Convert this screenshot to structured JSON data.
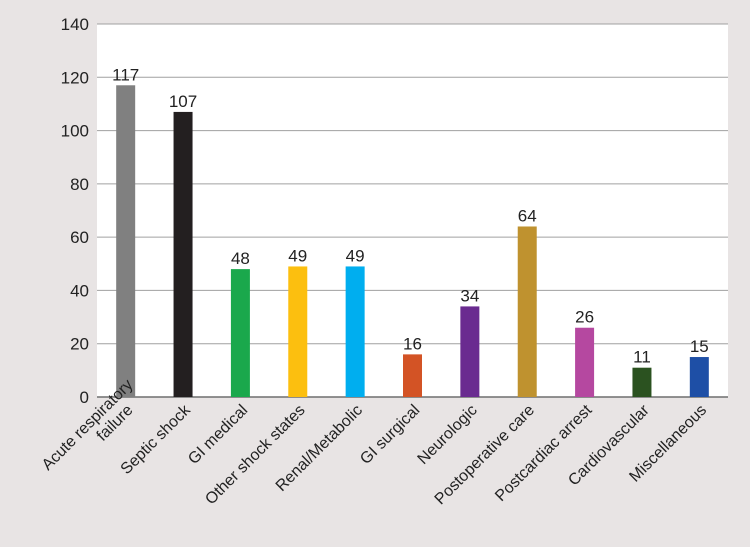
{
  "chart_data": {
    "type": "bar",
    "title": "",
    "xlabel": "",
    "ylabel": "",
    "ylim": [
      0,
      140
    ],
    "yticks": [
      0,
      20,
      40,
      60,
      80,
      100,
      120,
      140
    ],
    "grid": true,
    "legend": "none",
    "plot_background": "#ffffff",
    "page_background": "#e8e4e4",
    "gridline_color": "#a0a0a0",
    "bars": [
      {
        "category": "Acute respiratory failure",
        "label_lines": [
          "Acute respiratory",
          "failure"
        ],
        "value": 117,
        "color": "#808080"
      },
      {
        "category": "Septic shock",
        "label_lines": [
          "Septic shock"
        ],
        "value": 107,
        "color": "#231f20"
      },
      {
        "category": "GI medical",
        "label_lines": [
          "GI medical"
        ],
        "value": 48,
        "color": "#1aa84c"
      },
      {
        "category": "Other shock states",
        "label_lines": [
          "Other shock states"
        ],
        "value": 49,
        "color": "#fcbf0f"
      },
      {
        "category": "Renal/Metabolic",
        "label_lines": [
          "Renal/Metabolic"
        ],
        "value": 49,
        "color": "#00aeef"
      },
      {
        "category": "GI surgical",
        "label_lines": [
          "GI surgical"
        ],
        "value": 16,
        "color": "#d35325"
      },
      {
        "category": "Neurologic",
        "label_lines": [
          "Neurologic"
        ],
        "value": 34,
        "color": "#6a2b90"
      },
      {
        "category": "Postoperative care",
        "label_lines": [
          "Postoperative care"
        ],
        "value": 64,
        "color": "#bf922f"
      },
      {
        "category": "Postcardiac arrest",
        "label_lines": [
          "Postcardiac arrest"
        ],
        "value": 26,
        "color": "#b548a0"
      },
      {
        "category": "Cardiovascular",
        "label_lines": [
          "Cardiovascular"
        ],
        "value": 11,
        "color": "#2b5220"
      },
      {
        "category": "Miscellaneous",
        "label_lines": [
          "Miscellaneous"
        ],
        "value": 15,
        "color": "#1e4fa6"
      }
    ]
  }
}
